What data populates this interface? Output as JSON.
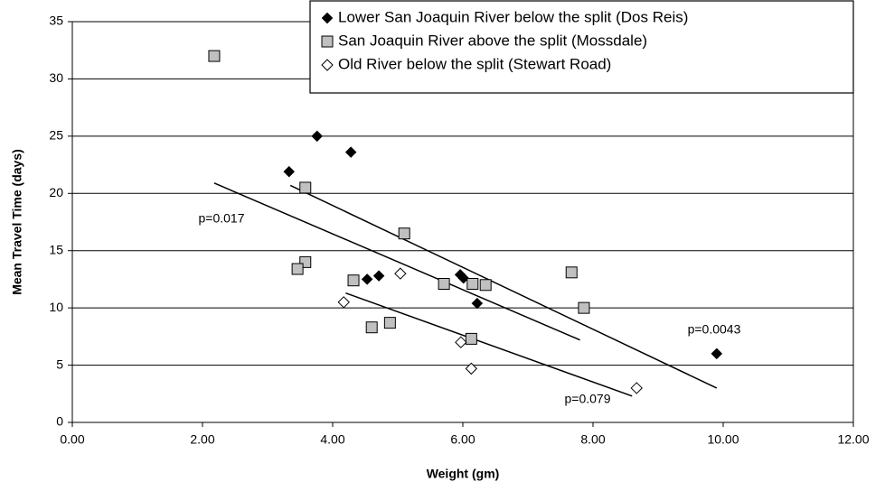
{
  "chart_data": {
    "type": "scatter",
    "x_label": "Weight (gm)",
    "y_label": "Mean Travel Time (days)",
    "xlim": [
      0,
      12
    ],
    "ylim": [
      0,
      35
    ],
    "xticks": [
      {
        "value": 0,
        "label": "0.00"
      },
      {
        "value": 2,
        "label": "2.00"
      },
      {
        "value": 4,
        "label": "4.00"
      },
      {
        "value": 6,
        "label": "6.00"
      },
      {
        "value": 8,
        "label": "8.00"
      },
      {
        "value": 10,
        "label": "10.00"
      },
      {
        "value": 12,
        "label": "12.00"
      }
    ],
    "yticks": [
      0,
      5,
      10,
      15,
      20,
      25,
      30,
      35
    ],
    "grid": true,
    "legend": "top-right",
    "series": [
      {
        "name": "Lower San Joaquin River below the split (Dos Reis)",
        "marker": "diamond",
        "color": "#000000",
        "x": [
          3.33,
          3.76,
          4.28,
          4.53,
          4.71,
          5.96,
          6.01,
          6.22,
          9.9
        ],
        "values": [
          21.9,
          25.0,
          23.6,
          12.5,
          12.8,
          12.9,
          12.6,
          10.4,
          6.0
        ]
      },
      {
        "name": "San Joaquin River above the split (Mossdale)",
        "marker": "square",
        "color": "#c0c0c0",
        "x": [
          2.18,
          3.58,
          3.58,
          3.46,
          4.32,
          5.1,
          4.6,
          4.88,
          5.71,
          6.13,
          6.15,
          6.35,
          7.67,
          7.86
        ],
        "values": [
          32.0,
          20.5,
          14.0,
          13.4,
          12.4,
          16.5,
          8.3,
          8.7,
          12.1,
          7.3,
          12.1,
          12.0,
          13.1,
          10.0
        ]
      },
      {
        "name": "Old River below the split (Stewart Road)",
        "marker": "diamond-open",
        "color": "#ffffff",
        "x": [
          4.17,
          5.04,
          5.97,
          6.13,
          8.67
        ],
        "values": [
          10.5,
          13.0,
          7.0,
          4.7,
          3.0
        ]
      }
    ],
    "trendlines": [
      {
        "x": [
          3.35,
          9.9
        ],
        "y": [
          20.7,
          3.0
        ]
      },
      {
        "x": [
          2.18,
          7.8
        ],
        "y": [
          20.9,
          7.2
        ]
      },
      {
        "x": [
          4.2,
          8.6
        ],
        "y": [
          11.3,
          2.3
        ]
      }
    ],
    "annotations": [
      "p=0.017",
      "p=0.0043",
      "p=0.079"
    ]
  }
}
